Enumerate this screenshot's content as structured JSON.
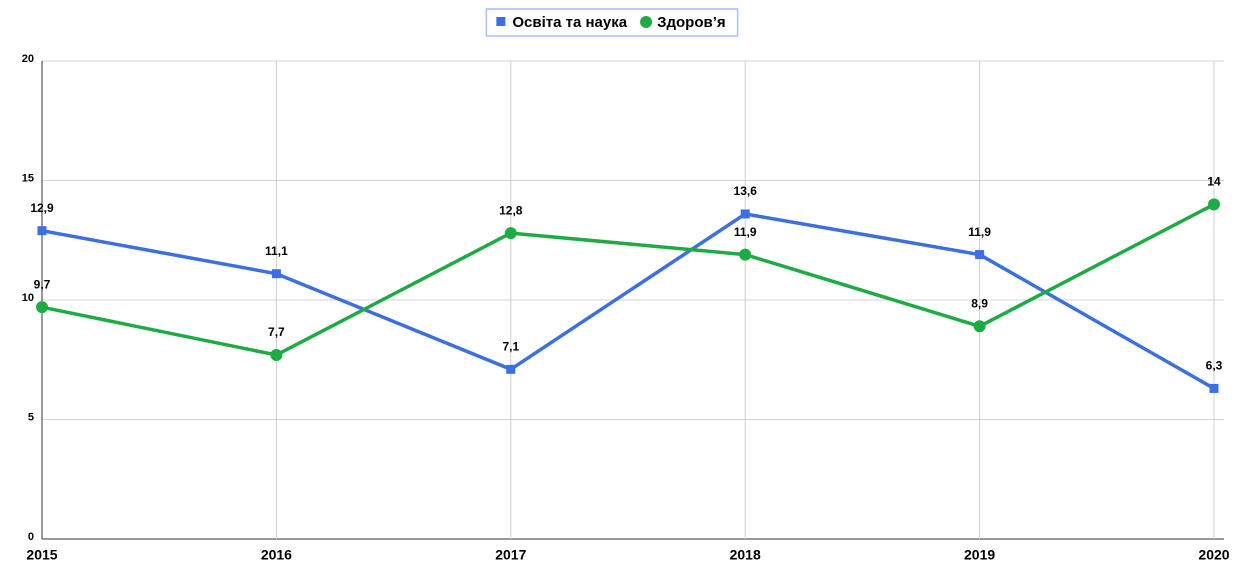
{
  "chart_data": {
    "type": "line",
    "categories": [
      "2015",
      "2016",
      "2017",
      "2018",
      "2019",
      "2020"
    ],
    "series": [
      {
        "name": "Освіта та наука",
        "color": "#3c6fe0",
        "marker": "square",
        "values": [
          12.9,
          11.1,
          7.1,
          13.6,
          11.9,
          6.3
        ],
        "value_labels": [
          "12,9",
          "11,1",
          "7,1",
          "13,6",
          "11,9",
          "6,3"
        ]
      },
      {
        "name": "Здоров’я",
        "color": "#1fab43",
        "marker": "circle",
        "values": [
          9.7,
          7.7,
          12.8,
          11.9,
          8.9,
          14
        ],
        "value_labels": [
          "9,7",
          "7,7",
          "12,8",
          "11,9",
          "8,9",
          "14"
        ]
      }
    ],
    "ylim": [
      0,
      20
    ],
    "yticks": [
      0,
      5,
      10,
      15,
      20
    ],
    "grid": true,
    "legend": "top"
  }
}
